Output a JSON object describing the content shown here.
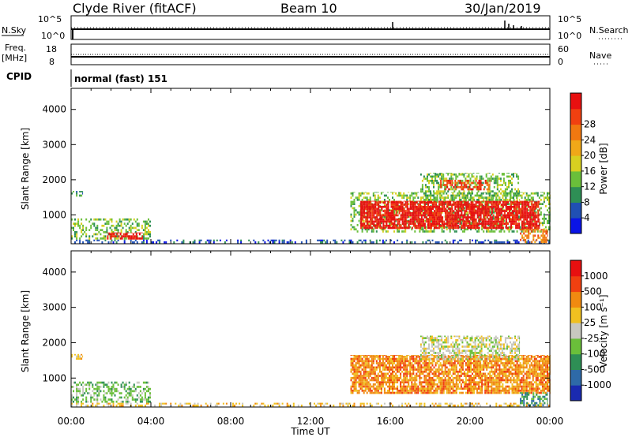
{
  "header": {
    "station": "Clyde River (fitACF)",
    "beam": "Beam 10",
    "date": "30/Jan/2019"
  },
  "status_panels": {
    "nsky_label": "N.Sky",
    "nsky_ticks": [
      "10^5",
      "10^0"
    ],
    "nsearch_label": "N.Search",
    "nsearch_ticks": [
      "10^5",
      "10^0"
    ],
    "freq_label_line1": "Freq.",
    "freq_label_line2": "[MHz]",
    "freq_ticks": [
      "18",
      "8"
    ],
    "nave_label": "Nave",
    "nave_ticks": [
      "60",
      "0"
    ],
    "cpid_label": "CPID",
    "cpid_text": "normal (fast) 151"
  },
  "chart_data": [
    {
      "type": "heatmap",
      "name": "power",
      "ylabel": "Slant Range [km]",
      "xlabel": "",
      "x_ticks": [
        "00:00",
        "04:00",
        "08:00",
        "12:00",
        "16:00",
        "20:00",
        "00:00"
      ],
      "x_range_hours": [
        0,
        24
      ],
      "y_ticks": [
        1000,
        2000,
        3000,
        4000
      ],
      "ylim": [
        180,
        4600
      ],
      "colorbar": {
        "label": "Power [dB]",
        "ticks": [
          "4",
          "8",
          "12",
          "16",
          "20",
          "24",
          "28"
        ],
        "colors": [
          "#0a14e6",
          "#2050b4",
          "#2e8f55",
          "#6abf3a",
          "#d8d020",
          "#f0a818",
          "#f07810",
          "#f04010",
          "#e81010"
        ]
      },
      "regions": [
        {
          "t0": 0.0,
          "t1": 0.6,
          "r0": 1520,
          "r1": 1680,
          "level": 2,
          "density": 0.5
        },
        {
          "t0": 0.0,
          "t1": 24.0,
          "r0": 190,
          "r1": 300,
          "level": 1,
          "density": 0.35
        },
        {
          "t0": 0.0,
          "t1": 4.0,
          "r0": 300,
          "r1": 900,
          "level": 3,
          "density": 0.4
        },
        {
          "t0": 1.8,
          "t1": 3.6,
          "r0": 300,
          "r1": 500,
          "level": 8,
          "density": 0.7
        },
        {
          "t0": 14.0,
          "t1": 24.0,
          "r0": 500,
          "r1": 1650,
          "level": 3,
          "density": 0.45
        },
        {
          "t0": 14.5,
          "t1": 23.5,
          "r0": 600,
          "r1": 1400,
          "level": 8,
          "density": 0.8
        },
        {
          "t0": 17.5,
          "t1": 22.5,
          "r0": 1400,
          "r1": 2200,
          "level": 3,
          "density": 0.45
        },
        {
          "t0": 18.5,
          "t1": 21.0,
          "r0": 1700,
          "r1": 2000,
          "level": 7,
          "density": 0.5
        },
        {
          "t0": 22.5,
          "t1": 23.9,
          "r0": 200,
          "r1": 600,
          "level": 6,
          "density": 0.5
        }
      ]
    },
    {
      "type": "heatmap",
      "name": "velocity",
      "ylabel": "Slant Range [km]",
      "xlabel": "Time UT",
      "x_ticks": [
        "00:00",
        "04:00",
        "08:00",
        "12:00",
        "16:00",
        "20:00",
        "00:00"
      ],
      "x_range_hours": [
        0,
        24
      ],
      "y_ticks": [
        1000,
        2000,
        3000,
        4000
      ],
      "ylim": [
        180,
        4600
      ],
      "colorbar": {
        "label": "Velocity [m s⁻¹]",
        "ticks": [
          "1000",
          "500",
          "100",
          "25",
          "-25",
          "-100",
          "-500",
          "-1000"
        ],
        "colors": [
          "#1a2ab0",
          "#2e6aa8",
          "#2e8f55",
          "#6abf3a",
          "#c8c8c0",
          "#f0c020",
          "#f08a10",
          "#f04010",
          "#e81010"
        ]
      },
      "regions": [
        {
          "t0": 0.0,
          "t1": 0.6,
          "r0": 1520,
          "r1": 1680,
          "level": 5,
          "density": 0.5
        },
        {
          "t0": 0.0,
          "t1": 24.0,
          "r0": 190,
          "r1": 300,
          "level": 5,
          "density": 0.35
        },
        {
          "t0": 0.0,
          "t1": 4.0,
          "r0": 300,
          "r1": 900,
          "level": 3,
          "density": 0.45
        },
        {
          "t0": 14.0,
          "t1": 24.0,
          "r0": 550,
          "r1": 1650,
          "level": 6,
          "density": 0.8
        },
        {
          "t0": 17.5,
          "t1": 22.5,
          "r0": 1500,
          "r1": 2200,
          "level": 4,
          "density": 0.55
        },
        {
          "t0": 22.5,
          "t1": 23.9,
          "r0": 200,
          "r1": 600,
          "level": 2,
          "density": 0.5
        }
      ]
    }
  ]
}
